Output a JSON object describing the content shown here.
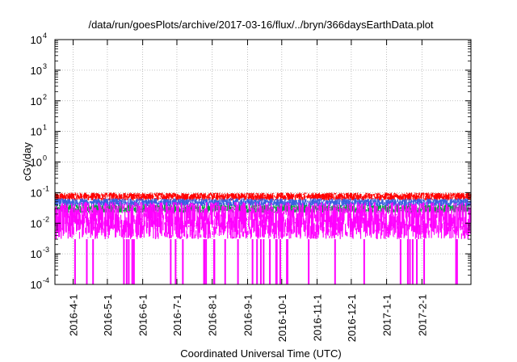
{
  "chart_data": {
    "type": "line",
    "title": "/data/run/goesPlots/archive/2017-03-16/flux/../bryn/366daysEarthData.plot",
    "xlabel": "Coordinated Universal Time (UTC)",
    "ylabel": "cGy/day",
    "yscale": "log",
    "ylim": [
      0.0001,
      10000
    ],
    "y_ticks": [
      {
        "base": "10",
        "exp": "-4",
        "value": 0.0001
      },
      {
        "base": "10",
        "exp": "-3",
        "value": 0.001
      },
      {
        "base": "10",
        "exp": "-2",
        "value": 0.01
      },
      {
        "base": "10",
        "exp": "-1",
        "value": 0.1
      },
      {
        "base": "10",
        "exp": "0",
        "value": 1
      },
      {
        "base": "10",
        "exp": "1",
        "value": 10
      },
      {
        "base": "10",
        "exp": "2",
        "value": 100
      },
      {
        "base": "10",
        "exp": "3",
        "value": 1000
      },
      {
        "base": "10",
        "exp": "4",
        "value": 10000
      }
    ],
    "xlim": [
      "2016-03-16",
      "2017-03-16"
    ],
    "x_ticks": [
      "2016-4-1",
      "2016-5-1",
      "2016-6-1",
      "2016-7-1",
      "2016-8-1",
      "2016-9-1",
      "2016-10-1",
      "2016-11-1",
      "2016-12-1",
      "2017-1-1",
      "2017-2-1"
    ],
    "x_tick_dates": [
      "2016-04-01",
      "2016-05-01",
      "2016-06-01",
      "2016-07-01",
      "2016-08-01",
      "2016-09-01",
      "2016-10-01",
      "2016-11-01",
      "2016-12-01",
      "2017-01-01",
      "2017-02-01"
    ],
    "grid": true,
    "series": [
      {
        "color": "#ff0000",
        "typical": 0.07,
        "low": 0.055,
        "high": 0.1
      },
      {
        "color": "#3a5fe0",
        "typical": 0.05,
        "low": 0.035,
        "high": 0.065
      },
      {
        "color": "#00a040",
        "typical": 0.03,
        "low": 0.022,
        "high": 0.04
      },
      {
        "color": "#ff00ff",
        "typical": 0.02,
        "low": 0.003,
        "high": 0.05,
        "dropouts_to": 0.0001
      }
    ]
  }
}
